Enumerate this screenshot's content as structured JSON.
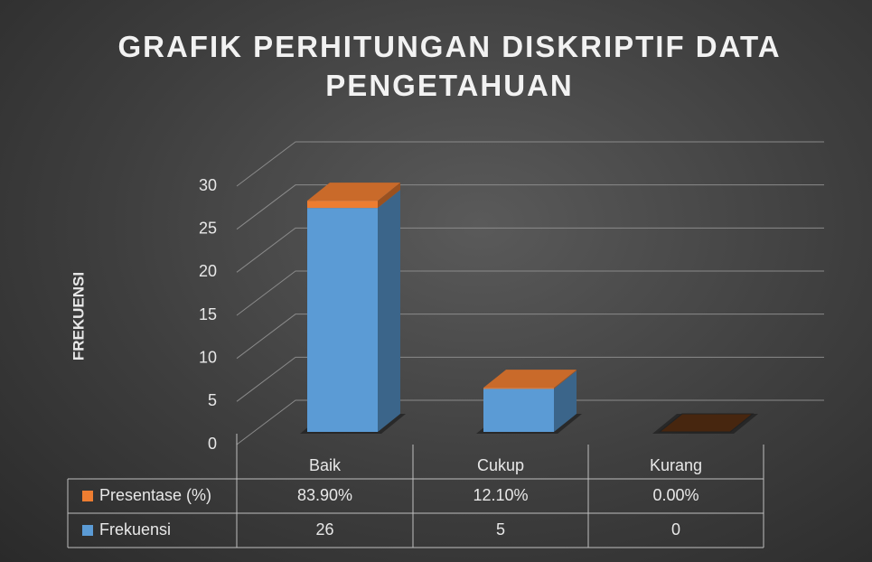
{
  "chart_data": {
    "type": "bar",
    "stacked": true,
    "title": "GRAFIK PERHITUNGAN DISKRIPTIF DATA PENGETAHUAN",
    "ylabel": "FREKUENSI",
    "categories": [
      "Baik",
      "Cukup",
      "Kurang"
    ],
    "series": [
      {
        "name": "Presentase (%)",
        "color": "#ed7d31",
        "values": [
          0.839,
          0.121,
          0
        ],
        "value_labels": [
          "83.90%",
          "12.10%",
          "0.00%"
        ]
      },
      {
        "name": "Frekuensi",
        "color": "#5b9bd5",
        "values": [
          26,
          5,
          0
        ]
      }
    ],
    "ylim": [
      0,
      30
    ],
    "yticks": [
      0,
      5,
      10,
      15,
      20,
      25,
      30
    ],
    "grid": true,
    "data_table": true
  }
}
